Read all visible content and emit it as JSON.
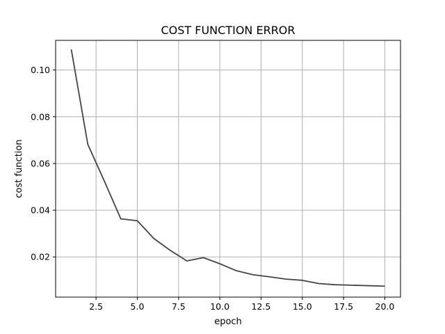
{
  "chart_data": {
    "type": "line",
    "title": "COST FUNCTION ERROR",
    "xlabel": "epoch",
    "ylabel": "cost function",
    "xlim": [
      0.05,
      20.95
    ],
    "ylim": [
      0.0028,
      0.1127
    ],
    "xticks": [
      2.5,
      5.0,
      7.5,
      10.0,
      12.5,
      15.0,
      17.5,
      20.0
    ],
    "xtick_labels": [
      "2.5",
      "5.0",
      "7.5",
      "10.0",
      "12.5",
      "15.0",
      "17.5",
      "20.0"
    ],
    "yticks": [
      0.02,
      0.04,
      0.06,
      0.08,
      0.1
    ],
    "ytick_labels": [
      "0.02",
      "0.04",
      "0.06",
      "0.08",
      "0.10"
    ],
    "grid": true,
    "series": [
      {
        "color": "#444444",
        "x": [
          1,
          2,
          3,
          4,
          5,
          6,
          7,
          8,
          9,
          10,
          11,
          12,
          13,
          14,
          15,
          16,
          17,
          18,
          19,
          20
        ],
        "values": [
          0.1088,
          0.0682,
          0.0525,
          0.0363,
          0.0355,
          0.0279,
          0.0228,
          0.0183,
          0.0197,
          0.0171,
          0.0141,
          0.0124,
          0.0115,
          0.0105,
          0.01,
          0.0086,
          0.0081,
          0.0079,
          0.0077,
          0.0075
        ]
      }
    ]
  }
}
